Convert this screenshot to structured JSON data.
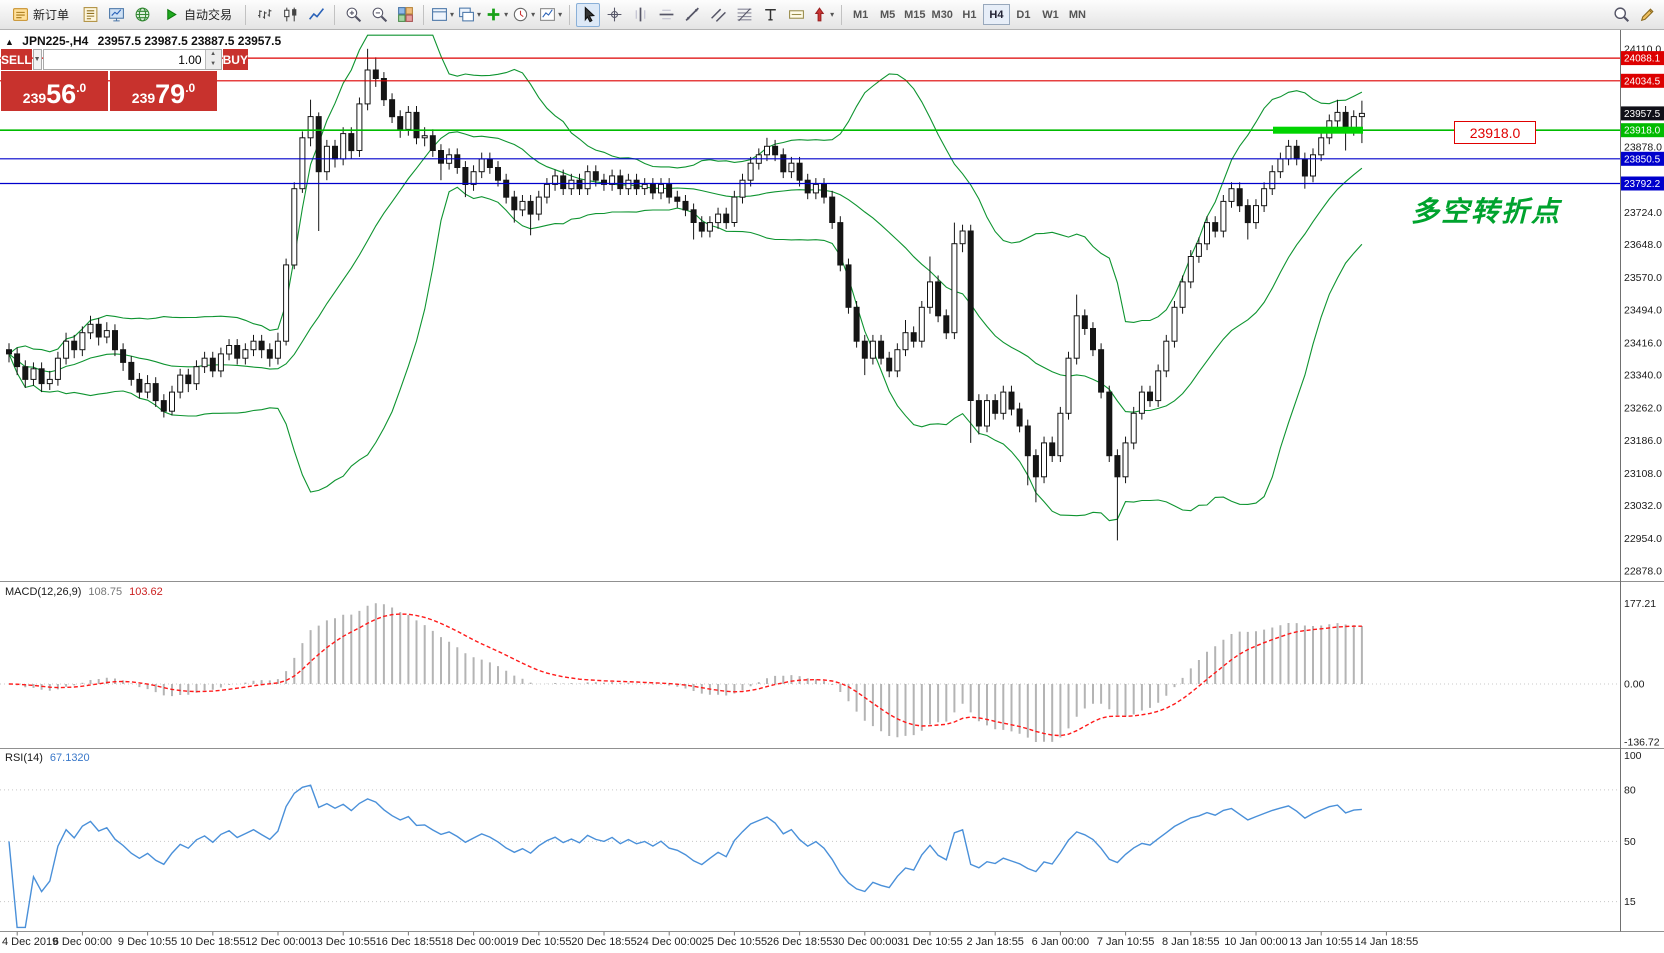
{
  "chart": {
    "title": "JPN225-,H4",
    "ohlc_text": "23957.5 23987.5 23887.5 23957.5",
    "collapse_icon": "▲"
  },
  "toolbar": {
    "groups": [
      {
        "items": [
          {
            "name": "new-order-button",
            "icon": "new-order",
            "label": "新订单"
          },
          {
            "name": "editor-button",
            "icon": "editor"
          },
          {
            "name": "market-watch-button",
            "icon": "monitor"
          },
          {
            "name": "community-button",
            "icon": "globe"
          },
          {
            "name": "autotrading-button",
            "icon": "play",
            "label": "自动交易"
          }
        ]
      },
      {
        "items": [
          {
            "name": "bar-chart-type-button",
            "icon": "bars"
          },
          {
            "name": "candlestick-type-button",
            "icon": "candles"
          },
          {
            "name": "line-chart-type-button",
            "icon": "line"
          }
        ]
      },
      {
        "items": [
          {
            "name": "zoom-in-button",
            "icon": "zoom-in"
          },
          {
            "name": "zoom-out-button",
            "icon": "zoom-out"
          },
          {
            "name": "tile-windows-button",
            "icon": "grid"
          }
        ]
      },
      {
        "items": [
          {
            "name": "new-chart-button",
            "icon": "window",
            "caret": true
          },
          {
            "name": "profiles-button",
            "icon": "window2",
            "caret": true
          },
          {
            "name": "indicators-button",
            "icon": "indicators-plus",
            "caret": true
          },
          {
            "name": "periods-button",
            "icon": "clock",
            "caret": true
          },
          {
            "name": "templates-button",
            "icon": "template",
            "caret": true
          }
        ]
      },
      {
        "items": [
          {
            "name": "cursor-button",
            "icon": "cursor",
            "active": true
          },
          {
            "name": "crosshair-button",
            "icon": "crosshair"
          },
          {
            "name": "vertical-line-button",
            "icon": "vline"
          },
          {
            "name": "horizontal-line-button",
            "icon": "hline"
          },
          {
            "name": "trendline-button",
            "icon": "trendline"
          },
          {
            "name": "channel-button",
            "icon": "channel"
          },
          {
            "name": "fibonacci-button",
            "icon": "fibo"
          },
          {
            "name": "text-button",
            "icon": "text"
          },
          {
            "name": "text-label-button",
            "icon": "label"
          },
          {
            "name": "arrows-button",
            "icon": "arrows",
            "caret": true
          }
        ]
      }
    ],
    "timeframes": [
      "M1",
      "M5",
      "M15",
      "M30",
      "H1",
      "H4",
      "D1",
      "W1",
      "MN"
    ],
    "active_timeframe": "H4",
    "right_items": [
      {
        "name": "search-button",
        "icon": "search"
      },
      {
        "name": "quick-draw-button",
        "icon": "pencil"
      }
    ]
  },
  "one_click": {
    "sell_label": "SELL",
    "buy_label": "BUY",
    "volume": "1.00",
    "color": "#c8322d",
    "sell_price": {
      "p": "239",
      "big": "56",
      "s": ".0"
    },
    "buy_price": {
      "p": "239",
      "big": "79",
      "s": ".0"
    }
  },
  "panels": {
    "macd": {
      "name": "MACD(12,26,9)",
      "value_main": "108.75",
      "value_signal": "103.62"
    },
    "rsi": {
      "name": "RSI(14)",
      "value": "67.1320"
    }
  },
  "price_axis": {
    "labels": [
      24110,
      23878,
      23724,
      23648,
      23570,
      23494,
      23416,
      23340,
      23262,
      23186,
      23108,
      23032,
      22954,
      22878
    ]
  },
  "macd_axis": [
    "177.21",
    "0.00",
    "-136.72"
  ],
  "rsi_axis": [
    "100",
    "80",
    "50",
    "15"
  ],
  "time_axis": [
    "4 Dec 2019",
    "6 Dec 00:00",
    "9 Dec 10:55",
    "10 Dec 18:55",
    "12 Dec 00:00",
    "13 Dec 10:55",
    "16 Dec 18:55",
    "18 Dec 00:00",
    "19 Dec 10:55",
    "20 Dec 18:55",
    "24 Dec 00:00",
    "25 Dec 10:55",
    "26 Dec 18:55",
    "30 Dec 00:00",
    "31 Dec 10:55",
    "2 Jan 18:55",
    "6 Jan 00:00",
    "7 Jan 10:55",
    "8 Jan 18:55",
    "10 Jan 00:00",
    "13 Jan 10:55",
    "14 Jan 18:55"
  ],
  "chart_data": {
    "type": "candlestick",
    "symbol": "JPN225-",
    "timeframe": "H4",
    "display_ohlc": {
      "open": "23957.5",
      "high": "23987.5",
      "low": "23887.5",
      "close": "23957.5"
    },
    "ylim": [
      22853,
      24150
    ],
    "candles": [
      [
        23400,
        23415,
        23370,
        23390
      ],
      [
        23390,
        23405,
        23340,
        23360
      ],
      [
        23360,
        23375,
        23310,
        23330
      ],
      [
        23330,
        23370,
        23315,
        23355
      ],
      [
        23355,
        23370,
        23300,
        23320
      ],
      [
        23320,
        23350,
        23305,
        23330
      ],
      [
        23330,
        23395,
        23315,
        23380
      ],
      [
        23380,
        23440,
        23365,
        23420
      ],
      [
        23420,
        23435,
        23380,
        23400
      ],
      [
        23400,
        23455,
        23385,
        23440
      ],
      [
        23440,
        23480,
        23425,
        23460
      ],
      [
        23460,
        23475,
        23410,
        23430
      ],
      [
        23430,
        23465,
        23415,
        23445
      ],
      [
        23445,
        23460,
        23385,
        23400
      ],
      [
        23400,
        23415,
        23350,
        23370
      ],
      [
        23370,
        23385,
        23315,
        23330
      ],
      [
        23330,
        23345,
        23285,
        23300
      ],
      [
        23300,
        23340,
        23285,
        23320
      ],
      [
        23320,
        23335,
        23265,
        23280
      ],
      [
        23280,
        23295,
        23240,
        23255
      ],
      [
        23255,
        23315,
        23245,
        23300
      ],
      [
        23300,
        23355,
        23285,
        23340
      ],
      [
        23340,
        23355,
        23300,
        23320
      ],
      [
        23320,
        23375,
        23305,
        23360
      ],
      [
        23360,
        23395,
        23345,
        23380
      ],
      [
        23380,
        23395,
        23335,
        23350
      ],
      [
        23350,
        23405,
        23335,
        23390
      ],
      [
        23390,
        23425,
        23375,
        23410
      ],
      [
        23410,
        23425,
        23365,
        23380
      ],
      [
        23380,
        23415,
        23365,
        23400
      ],
      [
        23400,
        23435,
        23385,
        23420
      ],
      [
        23420,
        23435,
        23380,
        23400
      ],
      [
        23400,
        23415,
        23360,
        23380
      ],
      [
        23380,
        23440,
        23365,
        23420
      ],
      [
        23420,
        23615,
        23410,
        23600
      ],
      [
        23600,
        23795,
        23590,
        23780
      ],
      [
        23780,
        23915,
        23770,
        23900
      ],
      [
        23900,
        23990,
        23880,
        23950
      ],
      [
        23950,
        23960,
        23680,
        23820
      ],
      [
        23820,
        23895,
        23800,
        23880
      ],
      [
        23880,
        23895,
        23830,
        23850
      ],
      [
        23850,
        23925,
        23835,
        23910
      ],
      [
        23910,
        23925,
        23850,
        23870
      ],
      [
        23870,
        23995,
        23855,
        23980
      ],
      [
        23980,
        24110,
        23965,
        24060
      ],
      [
        24060,
        24090,
        24020,
        24040
      ],
      [
        24040,
        24055,
        23975,
        23990
      ],
      [
        23990,
        24005,
        23935,
        23950
      ],
      [
        23950,
        23965,
        23900,
        23920
      ],
      [
        23920,
        23975,
        23905,
        23960
      ],
      [
        23960,
        23975,
        23885,
        23900
      ],
      [
        23900,
        23925,
        23880,
        23905
      ],
      [
        23905,
        23920,
        23855,
        23870
      ],
      [
        23870,
        23885,
        23800,
        23840
      ],
      [
        23840,
        23875,
        23825,
        23860
      ],
      [
        23860,
        23875,
        23815,
        23830
      ],
      [
        23830,
        23845,
        23760,
        23790
      ],
      [
        23790,
        23835,
        23775,
        23820
      ],
      [
        23820,
        23865,
        23805,
        23850
      ],
      [
        23850,
        23865,
        23815,
        23830
      ],
      [
        23830,
        23845,
        23785,
        23800
      ],
      [
        23800,
        23815,
        23745,
        23760
      ],
      [
        23760,
        23775,
        23700,
        23730
      ],
      [
        23730,
        23765,
        23715,
        23750
      ],
      [
        23750,
        23765,
        23670,
        23720
      ],
      [
        23720,
        23775,
        23705,
        23760
      ],
      [
        23760,
        23805,
        23745,
        23790
      ],
      [
        23790,
        23825,
        23775,
        23810
      ],
      [
        23810,
        23825,
        23765,
        23780
      ],
      [
        23780,
        23815,
        23765,
        23800
      ],
      [
        23800,
        23815,
        23765,
        23780
      ],
      [
        23780,
        23835,
        23765,
        23820
      ],
      [
        23820,
        23835,
        23785,
        23800
      ],
      [
        23800,
        23815,
        23775,
        23790
      ],
      [
        23790,
        23825,
        23775,
        23810
      ],
      [
        23810,
        23825,
        23765,
        23780
      ],
      [
        23780,
        23815,
        23765,
        23800
      ],
      [
        23800,
        23815,
        23765,
        23780
      ],
      [
        23780,
        23805,
        23765,
        23790
      ],
      [
        23790,
        23805,
        23755,
        23770
      ],
      [
        23770,
        23805,
        23755,
        23790
      ],
      [
        23790,
        23805,
        23745,
        23760
      ],
      [
        23760,
        23775,
        23735,
        23750
      ],
      [
        23750,
        23765,
        23715,
        23730
      ],
      [
        23730,
        23745,
        23660,
        23700
      ],
      [
        23700,
        23715,
        23665,
        23680
      ],
      [
        23680,
        23715,
        23665,
        23700
      ],
      [
        23700,
        23735,
        23685,
        23720
      ],
      [
        23720,
        23735,
        23685,
        23700
      ],
      [
        23700,
        23775,
        23690,
        23760
      ],
      [
        23760,
        23815,
        23745,
        23800
      ],
      [
        23800,
        23855,
        23785,
        23840
      ],
      [
        23840,
        23875,
        23825,
        23860
      ],
      [
        23860,
        23900,
        23845,
        23880
      ],
      [
        23880,
        23895,
        23845,
        23860
      ],
      [
        23860,
        23875,
        23805,
        23820
      ],
      [
        23820,
        23855,
        23805,
        23840
      ],
      [
        23840,
        23855,
        23785,
        23800
      ],
      [
        23800,
        23815,
        23755,
        23770
      ],
      [
        23770,
        23805,
        23755,
        23790
      ],
      [
        23790,
        23805,
        23745,
        23760
      ],
      [
        23760,
        23775,
        23685,
        23700
      ],
      [
        23700,
        23715,
        23585,
        23600
      ],
      [
        23600,
        23615,
        23485,
        23500
      ],
      [
        23500,
        23515,
        23405,
        23420
      ],
      [
        23420,
        23435,
        23340,
        23380
      ],
      [
        23380,
        23435,
        23365,
        23420
      ],
      [
        23420,
        23435,
        23365,
        23380
      ],
      [
        23380,
        23395,
        23335,
        23350
      ],
      [
        23350,
        23415,
        23335,
        23400
      ],
      [
        23400,
        23470,
        23385,
        23440
      ],
      [
        23440,
        23455,
        23405,
        23420
      ],
      [
        23420,
        23515,
        23405,
        23500
      ],
      [
        23500,
        23620,
        23485,
        23560
      ],
      [
        23560,
        23575,
        23465,
        23480
      ],
      [
        23480,
        23495,
        23425,
        23440
      ],
      [
        23440,
        23700,
        23425,
        23650
      ],
      [
        23650,
        23695,
        23630,
        23680
      ],
      [
        23680,
        23695,
        23180,
        23280
      ],
      [
        23280,
        23295,
        23200,
        23220
      ],
      [
        23220,
        23295,
        23205,
        23280
      ],
      [
        23280,
        23295,
        23235,
        23250
      ],
      [
        23250,
        23315,
        23235,
        23300
      ],
      [
        23300,
        23315,
        23245,
        23260
      ],
      [
        23260,
        23275,
        23205,
        23220
      ],
      [
        23220,
        23235,
        23080,
        23150
      ],
      [
        23150,
        23165,
        23040,
        23100
      ],
      [
        23100,
        23195,
        23085,
        23180
      ],
      [
        23180,
        23195,
        23135,
        23150
      ],
      [
        23150,
        23265,
        23135,
        23250
      ],
      [
        23250,
        23395,
        23235,
        23380
      ],
      [
        23380,
        23530,
        23365,
        23480
      ],
      [
        23480,
        23495,
        23435,
        23450
      ],
      [
        23450,
        23465,
        23385,
        23400
      ],
      [
        23400,
        23415,
        23285,
        23300
      ],
      [
        23300,
        23315,
        23135,
        23150
      ],
      [
        23150,
        23165,
        22950,
        23100
      ],
      [
        23100,
        23195,
        23085,
        23180
      ],
      [
        23180,
        23265,
        23165,
        23250
      ],
      [
        23250,
        23315,
        23235,
        23300
      ],
      [
        23300,
        23315,
        23265,
        23280
      ],
      [
        23280,
        23365,
        23265,
        23350
      ],
      [
        23350,
        23435,
        23335,
        23420
      ],
      [
        23420,
        23515,
        23405,
        23500
      ],
      [
        23500,
        23575,
        23485,
        23560
      ],
      [
        23560,
        23635,
        23545,
        23620
      ],
      [
        23620,
        23665,
        23605,
        23650
      ],
      [
        23650,
        23715,
        23635,
        23700
      ],
      [
        23700,
        23715,
        23665,
        23680
      ],
      [
        23680,
        23765,
        23665,
        23750
      ],
      [
        23750,
        23795,
        23735,
        23780
      ],
      [
        23780,
        23795,
        23725,
        23740
      ],
      [
        23740,
        23755,
        23660,
        23700
      ],
      [
        23700,
        23755,
        23685,
        23740
      ],
      [
        23740,
        23795,
        23725,
        23780
      ],
      [
        23780,
        23835,
        23765,
        23820
      ],
      [
        23820,
        23865,
        23805,
        23850
      ],
      [
        23850,
        23895,
        23835,
        23880
      ],
      [
        23880,
        23895,
        23835,
        23850
      ],
      [
        23850,
        23865,
        23780,
        23810
      ],
      [
        23810,
        23875,
        23795,
        23860
      ],
      [
        23860,
        23915,
        23845,
        23900
      ],
      [
        23900,
        23955,
        23885,
        23940
      ],
      [
        23940,
        23990,
        23925,
        23960
      ],
      [
        23960,
        23975,
        23870,
        23920
      ],
      [
        23920,
        23965,
        23905,
        23950
      ],
      [
        23950,
        23987.5,
        23887.5,
        23957.5
      ]
    ],
    "indicators": {
      "bollinger": {
        "period": 20,
        "deviation": 2,
        "color": "#0e9430"
      },
      "macd": {
        "fast": 12,
        "slow": 26,
        "signal": 9,
        "histogram_color": "#b4b4b4",
        "signal_color": "#ff1a1a",
        "last_main": 108.75,
        "last_signal": 103.62,
        "scale_labels": [
          177.21,
          0.0,
          -136.72
        ]
      },
      "rsi": {
        "period": 14,
        "last": 67.132,
        "color": "#4a90d9",
        "levels": [
          80,
          50,
          15
        ]
      }
    },
    "objects": {
      "hlines": [
        {
          "price": 24088.1,
          "color": "#dd0000"
        },
        {
          "price": 24034.5,
          "color": "#dd0000"
        },
        {
          "price": 23918.0,
          "color": "#00bb00",
          "width": 1.6
        },
        {
          "price": 23850.5,
          "color": "#0000cc"
        },
        {
          "price": 23792.2,
          "color": "#0000cc"
        }
      ],
      "current_price": 23957.5,
      "highlight_segment": {
        "price": 23918.0,
        "color": "#00d400"
      },
      "callout": {
        "text": "23918.0",
        "color": "#e00000"
      },
      "annotation": {
        "text": "多空转折点",
        "color": "#00a32e"
      }
    }
  }
}
